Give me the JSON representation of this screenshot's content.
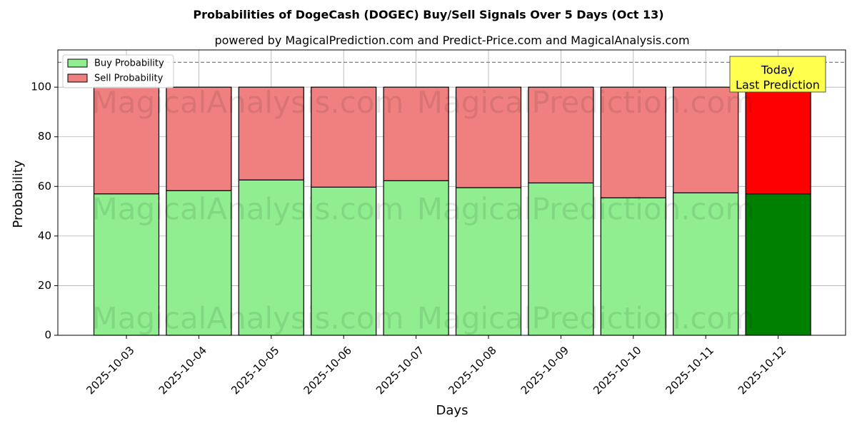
{
  "chart_data": {
    "type": "bar",
    "stacked": true,
    "title": "Probabilities of DogeCash (DOGEC) Buy/Sell Signals Over 5 Days (Oct 13)",
    "subtitle": "powered by MagicalPrediction.com and Predict-Price.com and MagicalAnalysis.com",
    "xlabel": "Days",
    "ylabel": "Probability",
    "categories": [
      "2025-10-03",
      "2025-10-04",
      "2025-10-05",
      "2025-10-06",
      "2025-10-07",
      "2025-10-08",
      "2025-10-09",
      "2025-10-10",
      "2025-10-11",
      "2025-10-12"
    ],
    "series": [
      {
        "name": "Buy Probability",
        "color": "#90ee90",
        "highlight_color": "#008000",
        "values": [
          57.0,
          58.3,
          62.6,
          59.7,
          62.3,
          59.5,
          61.4,
          55.4,
          57.4,
          57.0
        ]
      },
      {
        "name": "Sell Probability",
        "color": "#f08080",
        "highlight_color": "#ff0000",
        "values": [
          43.0,
          41.7,
          37.4,
          40.3,
          37.7,
          40.5,
          38.6,
          44.6,
          42.6,
          43.0
        ]
      }
    ],
    "highlight_category_index": 9,
    "ylim": [
      0,
      115
    ],
    "yticks": [
      0,
      20,
      40,
      60,
      80,
      100
    ],
    "reference_line": {
      "y": 110,
      "style": "dashed",
      "color": "#808080"
    },
    "grid": true,
    "legend_position": "upper-left",
    "annotation": {
      "lines": [
        "Today",
        "Last Prediction"
      ],
      "background": "#ffff4d",
      "position": "top-right"
    },
    "watermarks": [
      "MagicalAnalysis.com",
      "MagicalPrediction.com"
    ]
  }
}
